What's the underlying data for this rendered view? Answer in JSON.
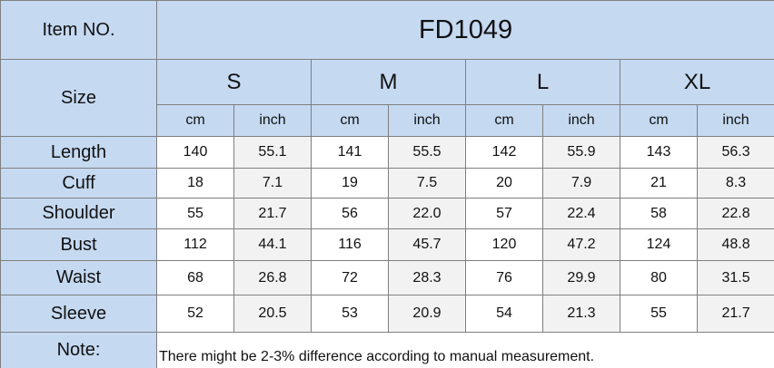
{
  "item_label": "Item NO.",
  "item_value": "FD1049",
  "size_label": "Size",
  "sizes": [
    "S",
    "M",
    "L",
    "XL"
  ],
  "units": [
    "cm",
    "inch"
  ],
  "rows": [
    {
      "label": "Length",
      "values": [
        "140",
        "55.1",
        "141",
        "55.5",
        "142",
        "55.9",
        "143",
        "56.3"
      ]
    },
    {
      "label": "Cuff",
      "values": [
        "18",
        "7.1",
        "19",
        "7.5",
        "20",
        "7.9",
        "21",
        "8.3"
      ]
    },
    {
      "label": "Shoulder",
      "values": [
        "55",
        "21.7",
        "56",
        "22.0",
        "57",
        "22.4",
        "58",
        "22.8"
      ]
    },
    {
      "label": "Bust",
      "values": [
        "112",
        "44.1",
        "116",
        "45.7",
        "120",
        "47.2",
        "124",
        "48.8"
      ]
    },
    {
      "label": "Waist",
      "values": [
        "68",
        "26.8",
        "72",
        "28.3",
        "76",
        "29.9",
        "80",
        "31.5"
      ]
    },
    {
      "label": "Sleeve",
      "values": [
        "52",
        "20.5",
        "53",
        "20.9",
        "54",
        "21.3",
        "55",
        "21.7"
      ]
    }
  ],
  "note_label": "Note:",
  "note": "There might be 2-3% difference according to manual measurement."
}
